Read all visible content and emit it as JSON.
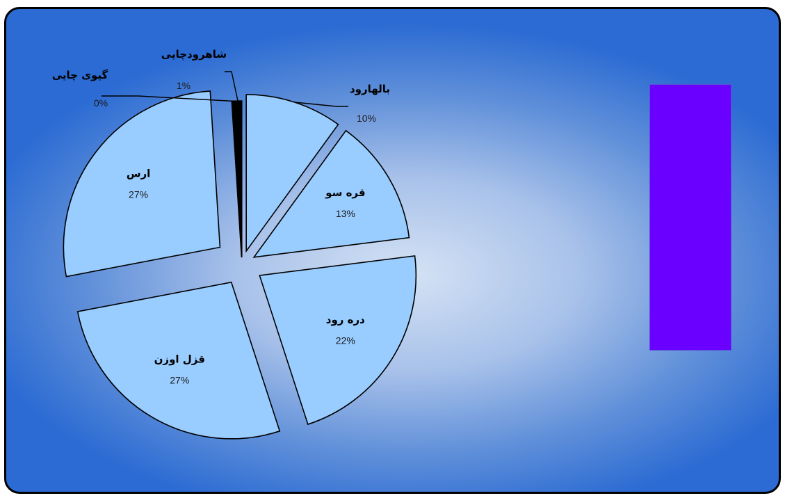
{
  "chart_data": {
    "type": "pie",
    "slices": [
      {
        "label": "بالهارود",
        "percent_label": "10%",
        "value": 10,
        "color": "#99ccff"
      },
      {
        "label": "قره سو",
        "percent_label": "13%",
        "value": 13,
        "color": "#99ccff"
      },
      {
        "label": "دره رود",
        "percent_label": "22%",
        "value": 22,
        "color": "#99ccff"
      },
      {
        "label": "قزل اوزن",
        "percent_label": "27%",
        "value": 27,
        "color": "#99ccff"
      },
      {
        "label": "ارس",
        "percent_label": "27%",
        "value": 27,
        "color": "#99ccff"
      },
      {
        "label": "گیوی چایی",
        "percent_label": "0%",
        "value": 0.2,
        "color": "#99ccff"
      },
      {
        "label": "شاهرودچایی",
        "percent_label": "1%",
        "value": 0.8,
        "color": "#99ccff"
      }
    ],
    "exploded": true,
    "legend_color": "#6a00ff"
  },
  "colors": {
    "slice_fill": "#99ccff",
    "slice_stroke": "#000000",
    "legend_fill": "#6a00ff"
  }
}
